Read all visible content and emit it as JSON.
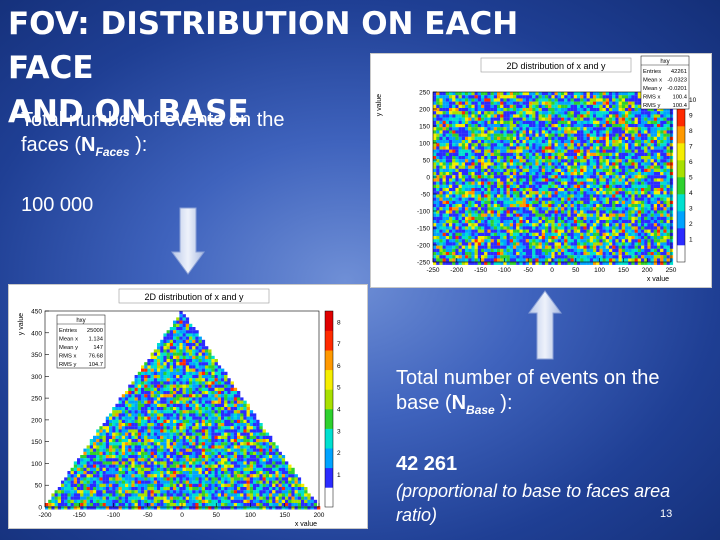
{
  "slide": {
    "title_line1": "FOV: DISTRIBUTION ON EACH FACE",
    "title_line2": "AND ON BASE",
    "faces_text_line1": "Total number of events on the",
    "faces_text_line2a": "faces (",
    "faces_symbol": "N",
    "faces_sub": "Faces",
    "faces_text_line2b": " ):",
    "faces_count": "100 000",
    "base_text_line1": "Total number of events on the",
    "base_text_line2a": "base (",
    "base_symbol": "N",
    "base_sub": "Base",
    "base_text_line2b": " ):",
    "base_count": "42 261",
    "ratio_line1": "(proportional to base to faces area",
    "ratio_line2": "ratio)",
    "page_number": "13"
  },
  "plot_top": {
    "title": "2D distribution of x and y",
    "stats_name": "hxy",
    "stats": [
      {
        "label": "Entries",
        "value": "42261"
      },
      {
        "label": "Mean x",
        "value": "-0.0323"
      },
      {
        "label": "Mean y",
        "value": "-0.0201"
      },
      {
        "label": "RMS x",
        "value": "100.4"
      },
      {
        "label": "RMS y",
        "value": "100.4"
      }
    ],
    "x_ticks": [
      "-250",
      "-200",
      "-150",
      "-100",
      "-50",
      "0",
      "50",
      "100",
      "150",
      "200",
      "250"
    ],
    "y_ticks": [
      "250",
      "200",
      "150",
      "100",
      "50",
      "0",
      "-50",
      "-100",
      "-150",
      "-200",
      "-250"
    ],
    "z_ticks": [
      "10",
      "9",
      "8",
      "7",
      "6",
      "5",
      "4",
      "3",
      "2",
      "1"
    ],
    "xlabel": "x value",
    "ylabel": "y value"
  },
  "plot_bottom": {
    "title": "2D distribution of x and y",
    "stats_name": "hxy",
    "stats": [
      {
        "label": "Entries",
        "value": "25000"
      },
      {
        "label": "Mean x",
        "value": "1.134"
      },
      {
        "label": "Mean y",
        "value": "147"
      },
      {
        "label": "RMS x",
        "value": "76.68"
      },
      {
        "label": "RMS y",
        "value": "104.7"
      }
    ],
    "x_ticks": [
      "-200",
      "-150",
      "-100",
      "-50",
      "0",
      "50",
      "100",
      "150",
      "200"
    ],
    "y_ticks": [
      "450",
      "400",
      "350",
      "300",
      "250",
      "200",
      "150",
      "100",
      "50",
      "0"
    ],
    "z_ticks": [
      "8",
      "7",
      "6",
      "5",
      "4",
      "3",
      "2",
      "1"
    ],
    "xlabel": "x value",
    "ylabel": "y value"
  },
  "colors": {
    "heat": [
      "#ffffff",
      "#2b2bff",
      "#00a3ff",
      "#00e0d0",
      "#2ed12e",
      "#a8e000",
      "#f5ee00",
      "#ff9900",
      "#ff2a00",
      "#e00000"
    ]
  }
}
